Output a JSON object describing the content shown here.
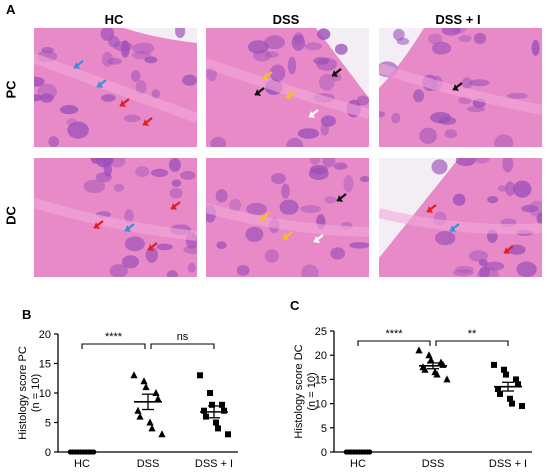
{
  "figure": {
    "panel_a": {
      "letter": "A",
      "columns": [
        "HC",
        "DSS",
        "DSS + I"
      ],
      "rows": [
        "PC",
        "DC"
      ],
      "tiles": [
        {
          "row": "PC",
          "col": "HC",
          "arrows": [
            "blue",
            "blue",
            "red",
            "red"
          ]
        },
        {
          "row": "PC",
          "col": "DSS",
          "arrows": [
            "yellow",
            "yellow",
            "white",
            "black",
            "black"
          ]
        },
        {
          "row": "PC",
          "col": "DSS + I",
          "arrows": [
            "black"
          ]
        },
        {
          "row": "DC",
          "col": "HC",
          "arrows": [
            "blue",
            "red",
            "red",
            "red"
          ]
        },
        {
          "row": "DC",
          "col": "DSS",
          "arrows": [
            "white",
            "black",
            "yellow",
            "yellow"
          ]
        },
        {
          "row": "DC",
          "col": "DSS + I",
          "arrows": [
            "red",
            "red",
            "blue"
          ]
        }
      ],
      "colors": {
        "pink": "#e889c8",
        "purple": "#9a4fb8",
        "white_space": "#f3eef4"
      }
    },
    "panel_b": {
      "letter": "B"
    },
    "panel_c": {
      "letter": "C"
    }
  },
  "chart_data": [
    {
      "type": "scatter",
      "panel": "B",
      "ylabel": "Histology score PC\n(n = 10)",
      "ylabel_line1": "Histology score PC",
      "ylabel_line2": "(n = 10)",
      "categories": [
        "HC",
        "DSS",
        "DSS + I"
      ],
      "ylim": [
        0,
        20
      ],
      "yticks": [
        0,
        5,
        10,
        15,
        20
      ],
      "series": [
        {
          "category": "HC",
          "marker": "circle",
          "values": [
            0,
            0,
            0,
            0,
            0,
            0,
            0,
            0,
            0,
            0
          ],
          "mean": 0,
          "sem": 0
        },
        {
          "category": "DSS",
          "marker": "triangle",
          "values": [
            13,
            12,
            11,
            10,
            9,
            7,
            6,
            5,
            4,
            3
          ],
          "mean": 8.5,
          "sem": 1.3
        },
        {
          "category": "DSS + I",
          "marker": "square",
          "values": [
            13,
            10,
            8,
            8,
            7,
            7,
            6,
            5,
            4,
            3
          ],
          "mean": 6.8,
          "sem": 1.0
        }
      ],
      "significance": [
        {
          "from": "HC",
          "to": "DSS",
          "label": "****"
        },
        {
          "from": "DSS",
          "to": "DSS + I",
          "label": "ns"
        }
      ]
    },
    {
      "type": "scatter",
      "panel": "C",
      "ylabel": "Histology score DC\n(n = 10)",
      "ylabel_line1": "Histology score DC",
      "ylabel_line2": "(n = 10)",
      "categories": [
        "HC",
        "DSS",
        "DSS + I"
      ],
      "ylim": [
        0,
        25
      ],
      "yticks": [
        0,
        5,
        10,
        15,
        20,
        25
      ],
      "series": [
        {
          "category": "HC",
          "marker": "circle",
          "values": [
            0,
            0,
            0,
            0,
            0,
            0,
            0,
            0,
            0,
            0
          ],
          "mean": 0,
          "sem": 0
        },
        {
          "category": "DSS",
          "marker": "triangle",
          "values": [
            21,
            20,
            19,
            18.5,
            18,
            17.5,
            17,
            16.5,
            16,
            15
          ],
          "mean": 17.8,
          "sem": 0.6
        },
        {
          "category": "DSS + I",
          "marker": "square",
          "values": [
            18,
            17,
            16,
            15,
            14,
            13,
            12,
            11,
            10,
            9.5
          ],
          "mean": 13.5,
          "sem": 0.9
        }
      ],
      "significance": [
        {
          "from": "HC",
          "to": "DSS",
          "label": "****"
        },
        {
          "from": "DSS",
          "to": "DSS + I",
          "label": "**"
        }
      ]
    }
  ]
}
